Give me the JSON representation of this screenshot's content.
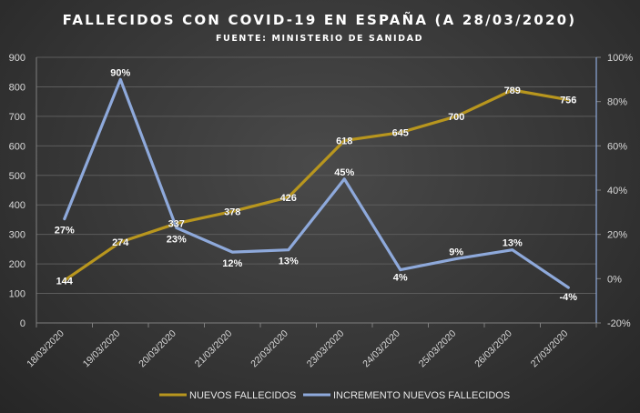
{
  "chart_data": {
    "type": "line",
    "title": "FALLECIDOS CON COVID-19 EN ESPAÑA (A 28/03/2020)",
    "subtitle": "FUENTE: MINISTERIO DE SANIDAD",
    "categories": [
      "18/03/2020",
      "19/03/2020",
      "20/03/2020",
      "21/03/2020",
      "22/03/2020",
      "23/03/2020",
      "24/03/2020",
      "25/03/2020",
      "26/03/2020",
      "27/03/2020"
    ],
    "y_left": {
      "min": 0,
      "max": 900,
      "step": 100,
      "ticks": [
        "0",
        "100",
        "200",
        "300",
        "400",
        "500",
        "600",
        "700",
        "800",
        "900"
      ]
    },
    "y_right": {
      "min": -20,
      "max": 100,
      "step": 20,
      "ticks": [
        "-20%",
        "0%",
        "20%",
        "40%",
        "60%",
        "80%",
        "100%"
      ]
    },
    "grid": true,
    "legend_position": "bottom",
    "series": [
      {
        "name": "NUEVOS FALLECIDOS",
        "axis": "left",
        "color": "#b8961e",
        "values": [
          144,
          274,
          337,
          378,
          426,
          618,
          645,
          700,
          789,
          756
        ],
        "labels": [
          "144",
          "274",
          "337",
          "378",
          "426",
          "618",
          "645",
          "700",
          "789",
          "756"
        ]
      },
      {
        "name": "INCREMENTO NUEVOS FALLECIDOS",
        "axis": "right",
        "color": "#8ea9db",
        "values": [
          27,
          90,
          23,
          12,
          13,
          45,
          4,
          9,
          13,
          -4
        ],
        "labels": [
          "27%",
          "90%",
          "23%",
          "12%",
          "13%",
          "45%",
          "4%",
          "9%",
          "13%",
          "-4%"
        ]
      }
    ]
  }
}
